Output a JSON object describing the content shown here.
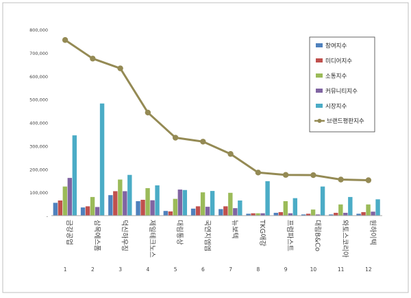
{
  "chart_data": {
    "type": "bar",
    "categories": [
      "금강공업",
      "삼목에스폼",
      "덕신하우징",
      "제일테크노스",
      "대림통상",
      "국연지엠엠",
      "뉴보텍",
      "TKG애강",
      "프럼파스트",
      "대림B&Co",
      "와토스코리아",
      "원하이텍"
    ],
    "category_numbers": [
      "1",
      "2",
      "3",
      "4",
      "5",
      "6",
      "7",
      "8",
      "9",
      "10",
      "11",
      "12"
    ],
    "series": [
      {
        "name": "참여지수",
        "color": "#4F81BD",
        "values": [
          55000,
          35000,
          88000,
          62000,
          20000,
          30000,
          28000,
          8000,
          12000,
          5000,
          5000,
          8000
        ]
      },
      {
        "name": "미디어지수",
        "color": "#C0504D",
        "values": [
          65000,
          40000,
          105000,
          68000,
          18000,
          40000,
          40000,
          10000,
          15000,
          8000,
          12000,
          15000
        ]
      },
      {
        "name": "소통지수",
        "color": "#9BBB59",
        "values": [
          125000,
          80000,
          155000,
          118000,
          72000,
          100000,
          98000,
          10000,
          62000,
          26000,
          48000,
          48000
        ]
      },
      {
        "name": "커뮤니티지수",
        "color": "#8064A2",
        "values": [
          162000,
          37000,
          105000,
          66000,
          112000,
          38000,
          32000,
          10000,
          10000,
          5000,
          12000,
          17000
        ]
      },
      {
        "name": "시장지수",
        "color": "#4BACC6",
        "values": [
          345000,
          482000,
          175000,
          130000,
          110000,
          106000,
          65000,
          148000,
          75000,
          125000,
          80000,
          70000
        ]
      }
    ],
    "line_series": {
      "name": "브랜드평판지수",
      "color": "#948A54",
      "values": [
        755000,
        675000,
        633000,
        443000,
        335000,
        318000,
        265000,
        185000,
        175000,
        174000,
        155000,
        152000
      ]
    },
    "y_ticks": [
      "800,000",
      "700,000",
      "600,000",
      "500,000",
      "400,000",
      "300,000",
      "200,000",
      "100,000",
      "-"
    ],
    "ylim": [
      0,
      800000
    ],
    "legend_position": "right",
    "grid": false
  }
}
